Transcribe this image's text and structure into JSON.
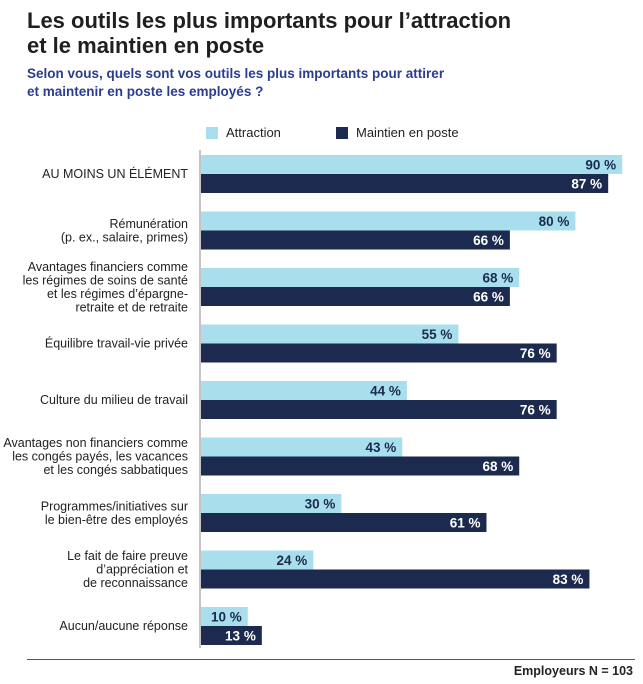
{
  "header": {
    "title_line1": "Les outils les plus importants pour l’attraction",
    "title_line2": "et le maintien en poste",
    "subtitle_line1": "Selon vous, quels sont vos outils les plus importants pour attirer",
    "subtitle_line2": "et maintenir en poste les employés ?"
  },
  "colors": {
    "attraction": "#a9dfec",
    "maintien": "#1b2a4e"
  },
  "chart_data": {
    "type": "bar",
    "orientation": "horizontal",
    "categories": [
      [
        "AU MOINS UN ÉLÉMENT"
      ],
      [
        "Rémunération",
        "(p. ex., salaire, primes)"
      ],
      [
        "Avantages financiers comme",
        "les régimes de soins de santé",
        "et les régimes d’épargne-",
        "retraite et de retraite"
      ],
      [
        "Équilibre travail-vie privée"
      ],
      [
        "Culture du milieu de travail"
      ],
      [
        "Avantages non financiers comme",
        "les congés payés, les vacances",
        "et les congés sabbatiques"
      ],
      [
        "Programmes/initiatives sur",
        "le bien-être des employés"
      ],
      [
        "Le fait de faire preuve",
        "d’appréciation et",
        "de reconnaissance"
      ],
      [
        "Aucun/aucune réponse"
      ]
    ],
    "series": [
      {
        "name": "Attraction",
        "values": [
          90,
          80,
          68,
          55,
          44,
          43,
          30,
          24,
          10
        ],
        "labels": [
          "90 %",
          "80 %",
          "68 %",
          "55 %",
          "44 %",
          "43 %",
          "30 %",
          "24 %",
          "10 %"
        ]
      },
      {
        "name": "Maintien en poste",
        "values": [
          87,
          66,
          66,
          76,
          76,
          68,
          61,
          83,
          13
        ],
        "labels": [
          "87 %",
          "66 %",
          "66 %",
          "76 %",
          "76 %",
          "68 %",
          "61 %",
          "83 %",
          "13 %"
        ]
      }
    ],
    "xlim": [
      0,
      100
    ],
    "legend_position": "top",
    "grid": false
  },
  "footer": {
    "note": "Employeurs N = 103"
  }
}
